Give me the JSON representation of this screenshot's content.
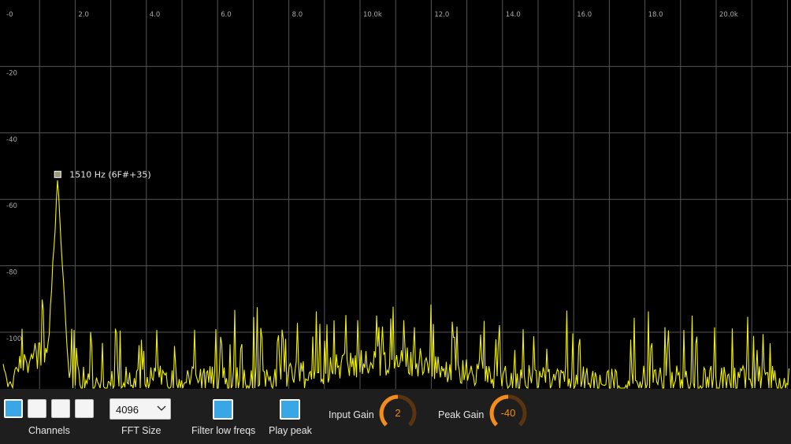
{
  "spectrum": {
    "x_tick_labels": [
      "-0",
      "2.0",
      "4.0",
      "6.0",
      "8.0",
      "10.0k",
      "12.0",
      "14.0",
      "16.0",
      "18.0",
      "20.0k"
    ],
    "x_ticks_khz": [
      0,
      2,
      4,
      6,
      8,
      10,
      12,
      14,
      16,
      18,
      20
    ],
    "y_tick_labels": [
      "-20",
      "-40",
      "-60",
      "-80",
      "-100"
    ],
    "y_ticks_db": [
      -20,
      -40,
      -60,
      -80,
      -100
    ],
    "x_range_khz": [
      0,
      22
    ],
    "y_range_db": [
      0,
      -113
    ],
    "peak_label": "1510 Hz (6F#+35)",
    "peak_freq_hz": 1510,
    "peak_db": -52.5,
    "colors": {
      "background": "#000000",
      "grid": "#555555",
      "trace": "#f2f200",
      "axis_text": "#aaaaaa",
      "peak_text": "#e6e6e6"
    }
  },
  "controls": {
    "channels_label": "Channels",
    "channel_states": [
      true,
      false,
      false,
      false
    ],
    "fft_label": "FFT Size",
    "fft_value": "4096",
    "filter_label": "Filter low freqs",
    "filter_on": true,
    "play_label": "Play peak",
    "play_on": true,
    "input_gain_label": "Input Gain",
    "input_gain_value": "2",
    "peak_gain_label": "Peak Gain",
    "peak_gain_value": "-40",
    "colors": {
      "accent": "#39a6e6",
      "knob": "#f28c1b",
      "knob_track": "#5a3310"
    }
  }
}
